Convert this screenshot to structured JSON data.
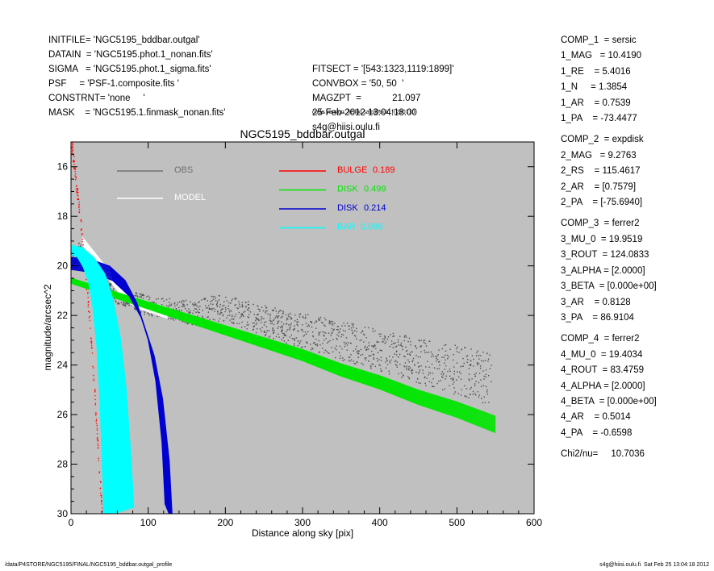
{
  "header_left": [
    "INITFILE= 'NGC5195_bddbar.outgal'",
    "DATAIN  = 'NGC5195.phot.1_nonan.fits'",
    "SIGMA   = 'NGC5195.phot.1_sigma.fits'",
    "PSF     = 'PSF-1.composite.fits '",
    "CONSTRNT= 'none     '",
    "MASK    = 'NGC5195.1.finmask_nonan.fits'"
  ],
  "header_mid": [
    "FITSECT = '[543:1323,1119:1899]'",
    "CONVBOX = '50, 50  '",
    "MAGZPT  =            21.097",
    "25-Feb-2012 13:04:18.00",
    "s4g@hiisi.oulu.fi"
  ],
  "code_version": "code version: heikki.salo@oulu.fi 290710",
  "components": [
    {
      "lines": [
        "COMP_1  = sersic",
        "1_MAG   = 10.4190",
        "1_RE    = 5.4016",
        "1_N     = 1.3854",
        "1_AR    = 0.7539",
        "1_PA    = -73.4477"
      ]
    },
    {
      "lines": [
        "COMP_2  = expdisk",
        "2_MAG   = 9.2763",
        "2_RS    = 115.4617",
        "2_AR    = [0.7579]",
        "2_PA    = [-75.6940]"
      ]
    },
    {
      "lines": [
        "COMP_3  = ferrer2",
        "3_MU_0  = 19.9519",
        "3_ROUT  = 124.0833",
        "3_ALPHA = [2.0000]",
        "3_BETA  = [0.000e+00]",
        "3_AR    = 0.8128",
        "3_PA    = 86.9104"
      ]
    },
    {
      "lines": [
        "COMP_4  = ferrer2",
        "4_MU_0  = 19.4034",
        "4_ROUT  = 83.4759",
        "4_ALPHA = [2.0000]",
        "4_BETA  = [0.000e+00]",
        "4_AR    = 0.5014",
        "4_PA    = -0.6598"
      ]
    }
  ],
  "chi2": "Chi2/nu=     10.7036",
  "footer_path": "/data/P4STORE/NGC5195/FINAL/NGC5195_bddbar.outgal_profile",
  "footer_host": "s4g@hiisi.oulu.fi  Sat Feb 25 13:04:18 2012",
  "chart_data": {
    "type": "scatter",
    "title": "NGC5195_bddbar.outgal",
    "xlabel": "Distance along sky [pix]",
    "ylabel": "magnitude/arcsec^2",
    "xlim": [
      0,
      600
    ],
    "ylim": [
      30,
      15
    ],
    "y_inverted": true,
    "xticks": [
      0,
      100,
      200,
      300,
      400,
      500,
      600
    ],
    "yticks": [
      16,
      18,
      20,
      22,
      24,
      26,
      28,
      30
    ],
    "background": "#c0c0c0",
    "legend_left": [
      {
        "name": "OBS",
        "color": "#707070"
      },
      {
        "name": "MODEL",
        "color": "#ffffff"
      }
    ],
    "legend_right": [
      {
        "name": "BULGE",
        "value": "0.189",
        "color": "#ff0000"
      },
      {
        "name": "DISK",
        "value": "0.499",
        "color": "#00e600"
      },
      {
        "name": "DISK",
        "value": "0.214",
        "color": "#0000d0"
      },
      {
        "name": "BAR",
        "value": "0.099",
        "color": "#00ffff"
      }
    ],
    "series": [
      {
        "name": "OBS",
        "color": "#505050",
        "points": [
          [
            2,
            19.6
          ],
          [
            10,
            19.3
          ],
          [
            20,
            19.7
          ],
          [
            30,
            20.2
          ],
          [
            40,
            20.7
          ],
          [
            50,
            21.0
          ],
          [
            60,
            21.2
          ],
          [
            80,
            21.4
          ],
          [
            100,
            21.6
          ],
          [
            120,
            21.7
          ],
          [
            140,
            21.8
          ],
          [
            160,
            21.9
          ],
          [
            180,
            21.7
          ],
          [
            200,
            21.7
          ],
          [
            250,
            22.2
          ],
          [
            300,
            22.6
          ],
          [
            350,
            23.0
          ],
          [
            400,
            23.4
          ],
          [
            450,
            23.8
          ],
          [
            500,
            24.2
          ],
          [
            545,
            24.6
          ]
        ]
      },
      {
        "name": "MODEL",
        "color": "#ffffff",
        "points": [
          [
            15,
            19.0
          ],
          [
            25,
            19.4
          ],
          [
            35,
            19.8
          ],
          [
            45,
            20.2
          ],
          [
            55,
            20.6
          ],
          [
            65,
            21.0
          ],
          [
            75,
            21.3
          ],
          [
            85,
            21.5
          ],
          [
            95,
            21.6
          ],
          [
            105,
            21.7
          ],
          [
            115,
            21.8
          ],
          [
            125,
            21.9
          ]
        ]
      },
      {
        "name": "BULGE",
        "value": "0.189",
        "color": "#ff0000",
        "points": [
          [
            0,
            14.9
          ],
          [
            5,
            16.3
          ],
          [
            10,
            17.6
          ],
          [
            15,
            19.1
          ],
          [
            20,
            20.8
          ],
          [
            25,
            22.7
          ],
          [
            30,
            25.0
          ],
          [
            35,
            27.6
          ],
          [
            40,
            30.0
          ]
        ]
      },
      {
        "name": "DISK",
        "value": "0.499",
        "color": "#00e600",
        "points": [
          [
            0,
            20.6
          ],
          [
            50,
            21.1
          ],
          [
            100,
            21.6
          ],
          [
            150,
            22.1
          ],
          [
            200,
            22.6
          ],
          [
            250,
            23.1
          ],
          [
            300,
            23.6
          ],
          [
            350,
            24.2
          ],
          [
            400,
            24.7
          ],
          [
            450,
            25.3
          ],
          [
            500,
            25.8
          ],
          [
            550,
            26.4
          ]
        ]
      },
      {
        "name": "DISK",
        "value": "0.214",
        "color": "#0000d0",
        "points": [
          [
            0,
            19.9
          ],
          [
            25,
            20.0
          ],
          [
            50,
            20.3
          ],
          [
            70,
            20.9
          ],
          [
            85,
            21.8
          ],
          [
            100,
            23.3
          ],
          [
            110,
            25.0
          ],
          [
            118,
            27.5
          ],
          [
            122,
            30.0
          ]
        ]
      },
      {
        "name": "BAR",
        "value": "0.099",
        "color": "#00ffff",
        "points": [
          [
            0,
            19.4
          ],
          [
            15,
            19.5
          ],
          [
            30,
            19.9
          ],
          [
            45,
            20.6
          ],
          [
            55,
            21.6
          ],
          [
            65,
            23.2
          ],
          [
            72,
            25.2
          ],
          [
            78,
            27.8
          ],
          [
            82,
            30.0
          ]
        ]
      }
    ]
  }
}
